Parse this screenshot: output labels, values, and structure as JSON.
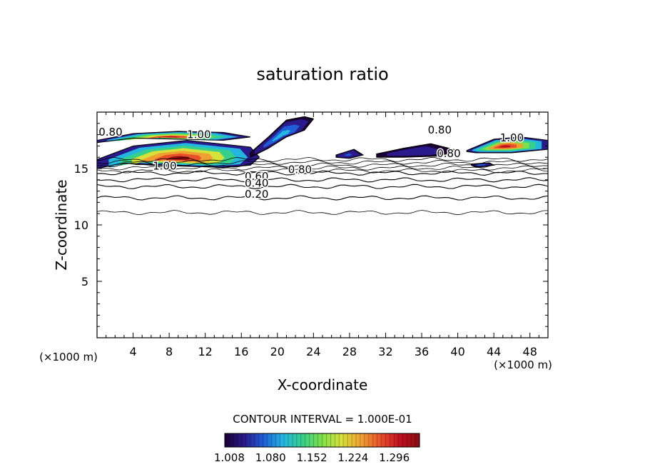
{
  "chart_data": {
    "type": "contour",
    "title": "saturation ratio",
    "xlabel": "X-coordinate",
    "ylabel": "Z-coordinate",
    "x_unit_label": "(×1000 m)",
    "x_unit_label_right": "(×1000 m)",
    "xlim": [
      0,
      50
    ],
    "ylim": [
      0,
      20
    ],
    "x_ticks": [
      4,
      8,
      12,
      16,
      20,
      24,
      28,
      32,
      36,
      40,
      44,
      48
    ],
    "y_ticks": [
      5,
      10,
      15
    ],
    "contour_interval_text": "CONTOUR INTERVAL = 1.000E-01",
    "colorbar": {
      "min": 1.0,
      "max": 1.34,
      "tick_labels": [
        "1.008",
        "1.080",
        "1.152",
        "1.224",
        "1.296"
      ],
      "colors": [
        "#1a0033",
        "#2a1a8c",
        "#1f5fd6",
        "#23b7e0",
        "#37d08a",
        "#7fe04a",
        "#d8e03a",
        "#f0a030",
        "#e8502a",
        "#c01020",
        "#8a0a10"
      ]
    },
    "contour_labels": [
      {
        "text": "0.80",
        "x": 1.5,
        "y": 17.9
      },
      {
        "text": "1.00",
        "x": 11.3,
        "y": 17.7
      },
      {
        "text": "1.00",
        "x": 7.5,
        "y": 14.9
      },
      {
        "text": "0.80",
        "x": 22.5,
        "y": 14.6
      },
      {
        "text": "0.60",
        "x": 17.7,
        "y": 14.0
      },
      {
        "text": "0.40",
        "x": 17.7,
        "y": 13.4
      },
      {
        "text": "0.20",
        "x": 17.7,
        "y": 12.4
      },
      {
        "text": "0.80",
        "x": 38.0,
        "y": 18.1
      },
      {
        "text": "0.80",
        "x": 39.0,
        "y": 16.0
      },
      {
        "text": "1.00",
        "x": 46.0,
        "y": 17.4
      }
    ],
    "contour_levels": [
      {
        "level": 0.2,
        "z": 12.4
      },
      {
        "level": 0.4,
        "z": 13.4
      },
      {
        "level": 0.6,
        "z": 14.0
      },
      {
        "level": 0.8,
        "z": 14.6
      }
    ],
    "lowest_contour_z": 11.1,
    "supersaturated_regions": [
      {
        "x": [
          0,
          3,
          6,
          10,
          14,
          17,
          18,
          17,
          10,
          4,
          0
        ],
        "z": [
          15,
          15.5,
          15.3,
          15.2,
          15.1,
          15.3,
          16.0,
          16.9,
          17.5,
          17.0,
          15.8
        ],
        "peak": 1.33
      },
      {
        "x": [
          0,
          4,
          9,
          14,
          17,
          14,
          9,
          4,
          0
        ],
        "z": [
          17.5,
          18.1,
          18.3,
          18.2,
          17.8,
          17.5,
          17.6,
          17.7,
          17.3
        ],
        "peak": 1.3
      },
      {
        "x": [
          17,
          19,
          21,
          23,
          24,
          23,
          21,
          19,
          17
        ],
        "z": [
          16.4,
          17.8,
          19.3,
          19.6,
          19.4,
          18.4,
          17.8,
          16.8,
          16.0
        ],
        "peak": 1.1
      },
      {
        "x": [
          26.5,
          28.5,
          29.5,
          28,
          26.5
        ],
        "z": [
          16.2,
          16.7,
          16.2,
          15.9,
          16.0
        ],
        "peak": 1.06
      },
      {
        "x": [
          31,
          34,
          37,
          40,
          38,
          34,
          31
        ],
        "z": [
          16.3,
          16.8,
          17.2,
          16.6,
          16.1,
          16.0,
          16.0
        ],
        "peak": 1.05
      },
      {
        "x": [
          41,
          44,
          47,
          50,
          50,
          46,
          42,
          41
        ],
        "z": [
          16.6,
          17.6,
          17.8,
          17.5,
          16.7,
          16.4,
          16.4,
          16.5
        ],
        "peak": 1.32
      },
      {
        "x": [
          41.5,
          43.5,
          44,
          42,
          41.5
        ],
        "z": [
          15.4,
          15.5,
          15.3,
          15.1,
          15.3
        ],
        "peak": 1.08
      }
    ]
  }
}
